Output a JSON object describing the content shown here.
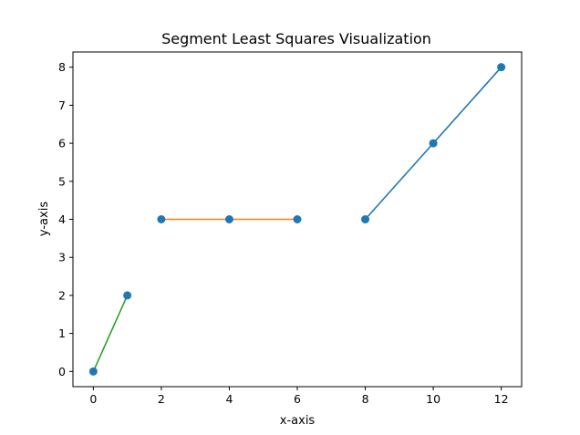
{
  "chart_data": {
    "type": "scatter",
    "title": "Segment Least Squares Visualization",
    "xlabel": "x-axis",
    "ylabel": "y-axis",
    "xlim": [
      -0.6,
      12.6
    ],
    "ylim": [
      -0.4,
      8.4
    ],
    "xticks": [
      0,
      2,
      4,
      6,
      8,
      10,
      12
    ],
    "yticks": [
      0,
      1,
      2,
      3,
      4,
      5,
      6,
      7,
      8
    ],
    "grid": false,
    "points": {
      "color": "#1f77b4",
      "x": [
        0,
        1,
        2,
        4,
        6,
        8,
        10,
        12
      ],
      "y": [
        0,
        2,
        4,
        4,
        4,
        4,
        6,
        8
      ]
    },
    "segments": [
      {
        "color": "#1f77b4",
        "x": [
          8,
          12
        ],
        "y": [
          4,
          8
        ]
      },
      {
        "color": "#ff7f0e",
        "x": [
          2,
          6
        ],
        "y": [
          4,
          4
        ]
      },
      {
        "color": "#2ca02c",
        "x": [
          0,
          1
        ],
        "y": [
          0,
          2
        ]
      }
    ]
  }
}
